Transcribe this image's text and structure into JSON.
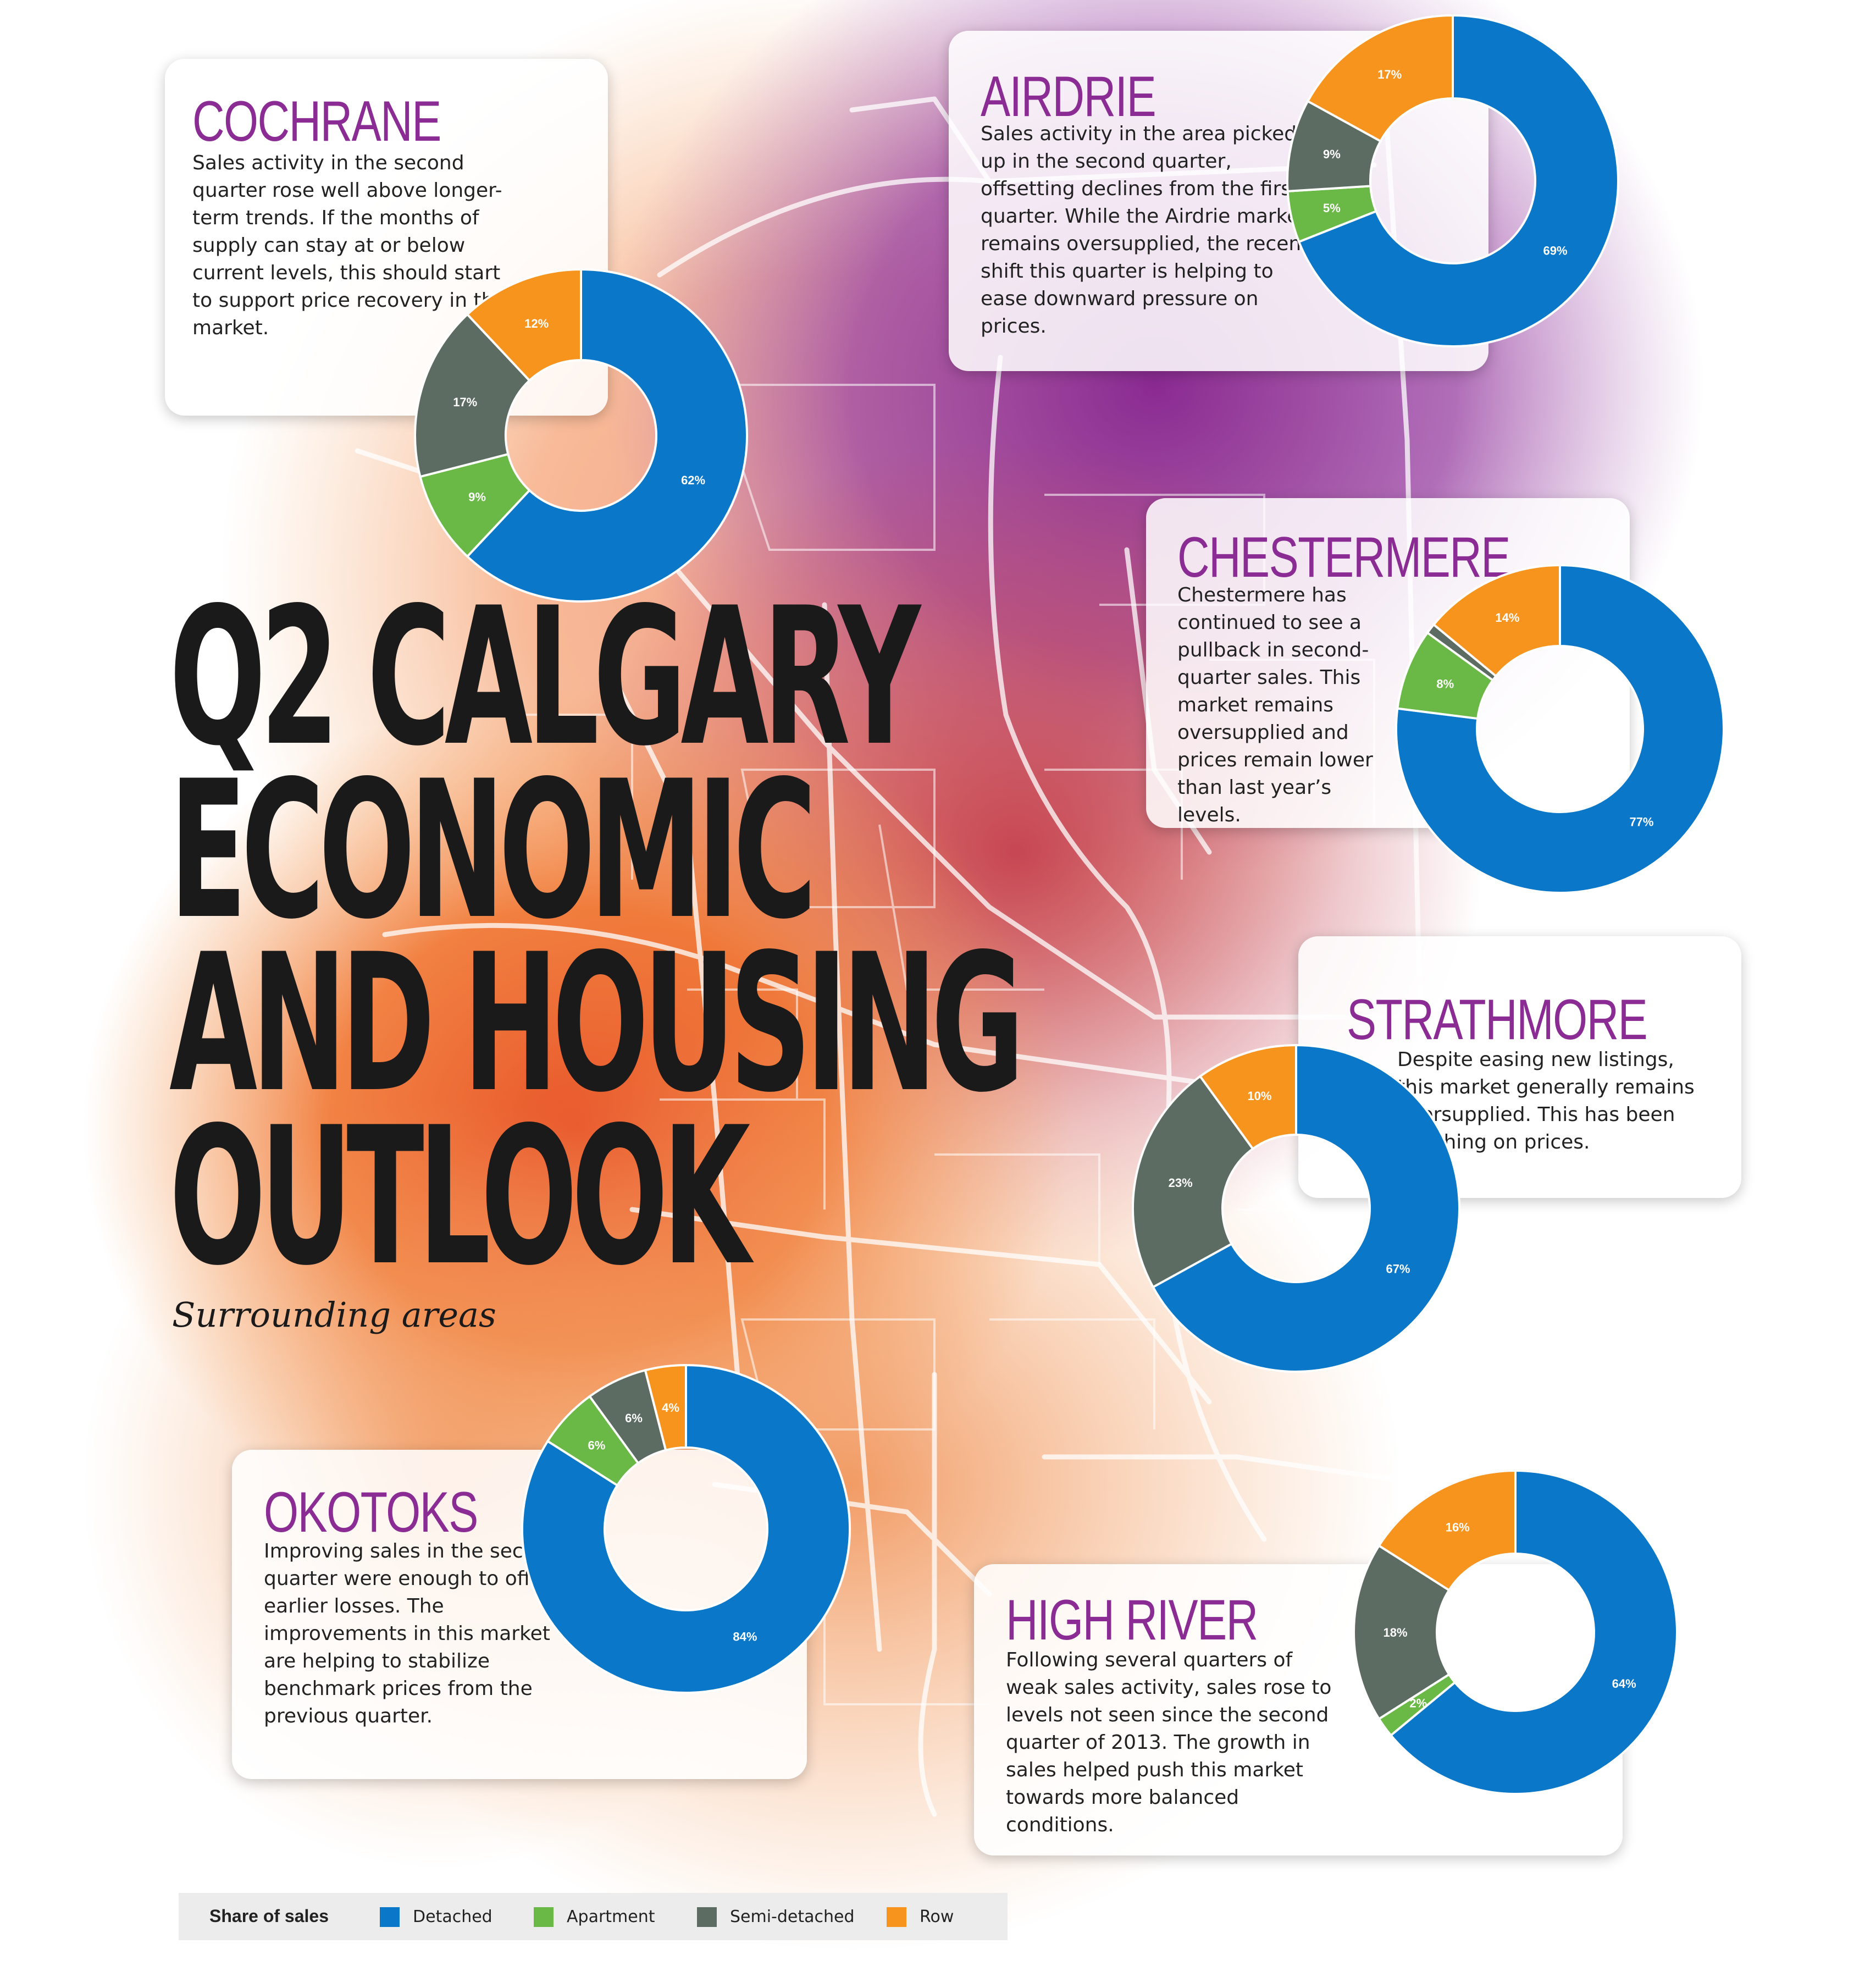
{
  "headline": [
    "Q2 CALGARY",
    "ECONOMIC",
    "AND HOUSING",
    "OUTLOOK"
  ],
  "subtitle": "Surrounding areas",
  "legend": {
    "title": "Share of sales",
    "items": [
      {
        "label": "Detached",
        "color": "#0a77c8"
      },
      {
        "label": "Apartment",
        "color": "#6ab946"
      },
      {
        "label": "Semi-detached",
        "color": "#5d6c62"
      },
      {
        "label": "Row",
        "color": "#f7941d"
      }
    ]
  },
  "areas": {
    "cochrane": {
      "title": "COCHRANE",
      "text": "Sales activity in the second quarter rose well above longer-term trends. If the months of supply can stay at or below current levels, this should start to support price recovery in this market."
    },
    "airdrie": {
      "title": "AIRDRIE",
      "text": "Sales activity in the area picked up in the second quarter, offsetting declines from the first quarter. While the Airdrie market remains oversupplied, the recent shift this quarter is helping to ease downward pressure on prices."
    },
    "chestermere": {
      "title": "CHESTERMERE",
      "text": "Chestermere has continued to see a pullback in second-quarter sales. This market remains oversupplied and prices remain lower than last year’s levels."
    },
    "strathmore": {
      "title": "STRATHMORE",
      "text": "Despite easing new listings, this market generally remains oversupplied. This has been weighing on prices."
    },
    "okotoks": {
      "title": "OKOTOKS",
      "text": "Improving sales in the second quarter were enough to offset earlier losses. The improvements in this market are helping to stabilize benchmark prices from the previous quarter."
    },
    "highriver": {
      "title": "HIGH RIVER",
      "text": "Following several quarters of weak sales activity, sales rose to levels not seen since the second quarter of 2013. The growth in sales helped push this market towards more balanced conditions."
    }
  },
  "chart_data": [
    {
      "type": "pie",
      "area": "Cochrane",
      "categories": [
        "Detached",
        "Apartment",
        "Semi-detached",
        "Row"
      ],
      "values": [
        62,
        9,
        17,
        12
      ],
      "labels": [
        "62%",
        "9%",
        "17%",
        "12%"
      ]
    },
    {
      "type": "pie",
      "area": "Airdrie",
      "categories": [
        "Detached",
        "Apartment",
        "Semi-detached",
        "Row"
      ],
      "values": [
        69,
        5,
        9,
        17
      ],
      "labels": [
        "69%",
        "5%",
        "9%",
        "17%"
      ]
    },
    {
      "type": "pie",
      "area": "Chestermere",
      "categories": [
        "Detached",
        "Apartment",
        "Semi-detached",
        "Row"
      ],
      "values": [
        77,
        8,
        1,
        14
      ],
      "labels": [
        "77%",
        "8%",
        "",
        "14%"
      ]
    },
    {
      "type": "pie",
      "area": "Strathmore",
      "categories": [
        "Detached",
        "Apartment",
        "Semi-detached",
        "Row"
      ],
      "values": [
        67,
        0,
        23,
        10
      ],
      "labels": [
        "67%",
        "",
        "23%",
        "10%"
      ]
    },
    {
      "type": "pie",
      "area": "Okotoks",
      "categories": [
        "Detached",
        "Apartment",
        "Semi-detached",
        "Row"
      ],
      "values": [
        84,
        6,
        6,
        4
      ],
      "labels": [
        "84%",
        "6%",
        "6%",
        "4%"
      ]
    },
    {
      "type": "pie",
      "area": "High River",
      "categories": [
        "Detached",
        "Apartment",
        "Semi-detached",
        "Row"
      ],
      "values": [
        64,
        2,
        18,
        16
      ],
      "labels": [
        "64%",
        "2%",
        "18%",
        "16%"
      ]
    }
  ]
}
